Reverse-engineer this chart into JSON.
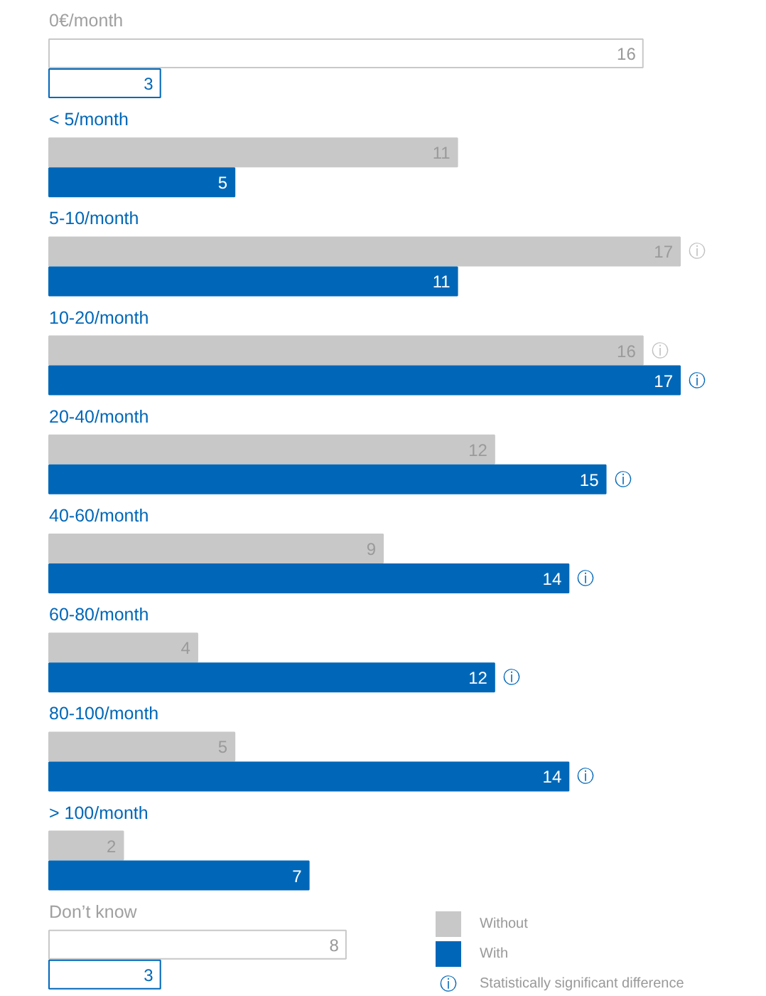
{
  "chart_data": {
    "type": "bar",
    "orientation": "horizontal",
    "data_labels": true,
    "legend": "bottom right",
    "categories": [
      "0€/month",
      "< 5/month",
      "5-10/month",
      "10-20/month",
      "20-40/month",
      "40-60/month",
      "60-80/month",
      "80-100/month",
      "> 100/month",
      "Don’t know"
    ],
    "series": [
      {
        "name": "Without",
        "color": "#c8c8c8",
        "colors": [
          "#ffffff",
          "#c8c8c8",
          "#c8c8c8",
          "#c8c8c8",
          "#c8c8c8",
          "#c8c8c8",
          "#c8c8c8",
          "#c8c8c8",
          "#c8c8c8",
          "#ffffff"
        ],
        "values": [
          16,
          11,
          17,
          16,
          12,
          9,
          4,
          5,
          2,
          8
        ]
      },
      {
        "name": "With",
        "color": "#0067b8",
        "colors": [
          "#ffffff",
          "#0067b8",
          "#0067b8",
          "#0067b8",
          "#0067b8",
          "#0067b8",
          "#0067b8",
          "#0067b8",
          "#0067b8",
          "#ffffff"
        ],
        "values": [
          3,
          5,
          11,
          17,
          15,
          14,
          12,
          14,
          7,
          3
        ]
      }
    ],
    "annotations": [
      {
        "text": "ⓘ",
        "x": 17,
        "y": "5-10/month"
      },
      {
        "text": "ⓘ",
        "x": 16,
        "y": "10-20/month"
      },
      {
        "text": "ⓘ",
        "x": 17,
        "y": "10-20/month"
      },
      {
        "text": "ⓘ",
        "x": 15,
        "y": "20-40/month"
      },
      {
        "text": "ⓘ",
        "x": 14,
        "y": "40-60/month"
      },
      {
        "text": "ⓘ",
        "x": 12,
        "y": "60-80/month"
      },
      {
        "text": "ⓘ",
        "x": 14,
        "y": "80-100/month"
      },
      "Statistically significant difference"
    ]
  }
}
